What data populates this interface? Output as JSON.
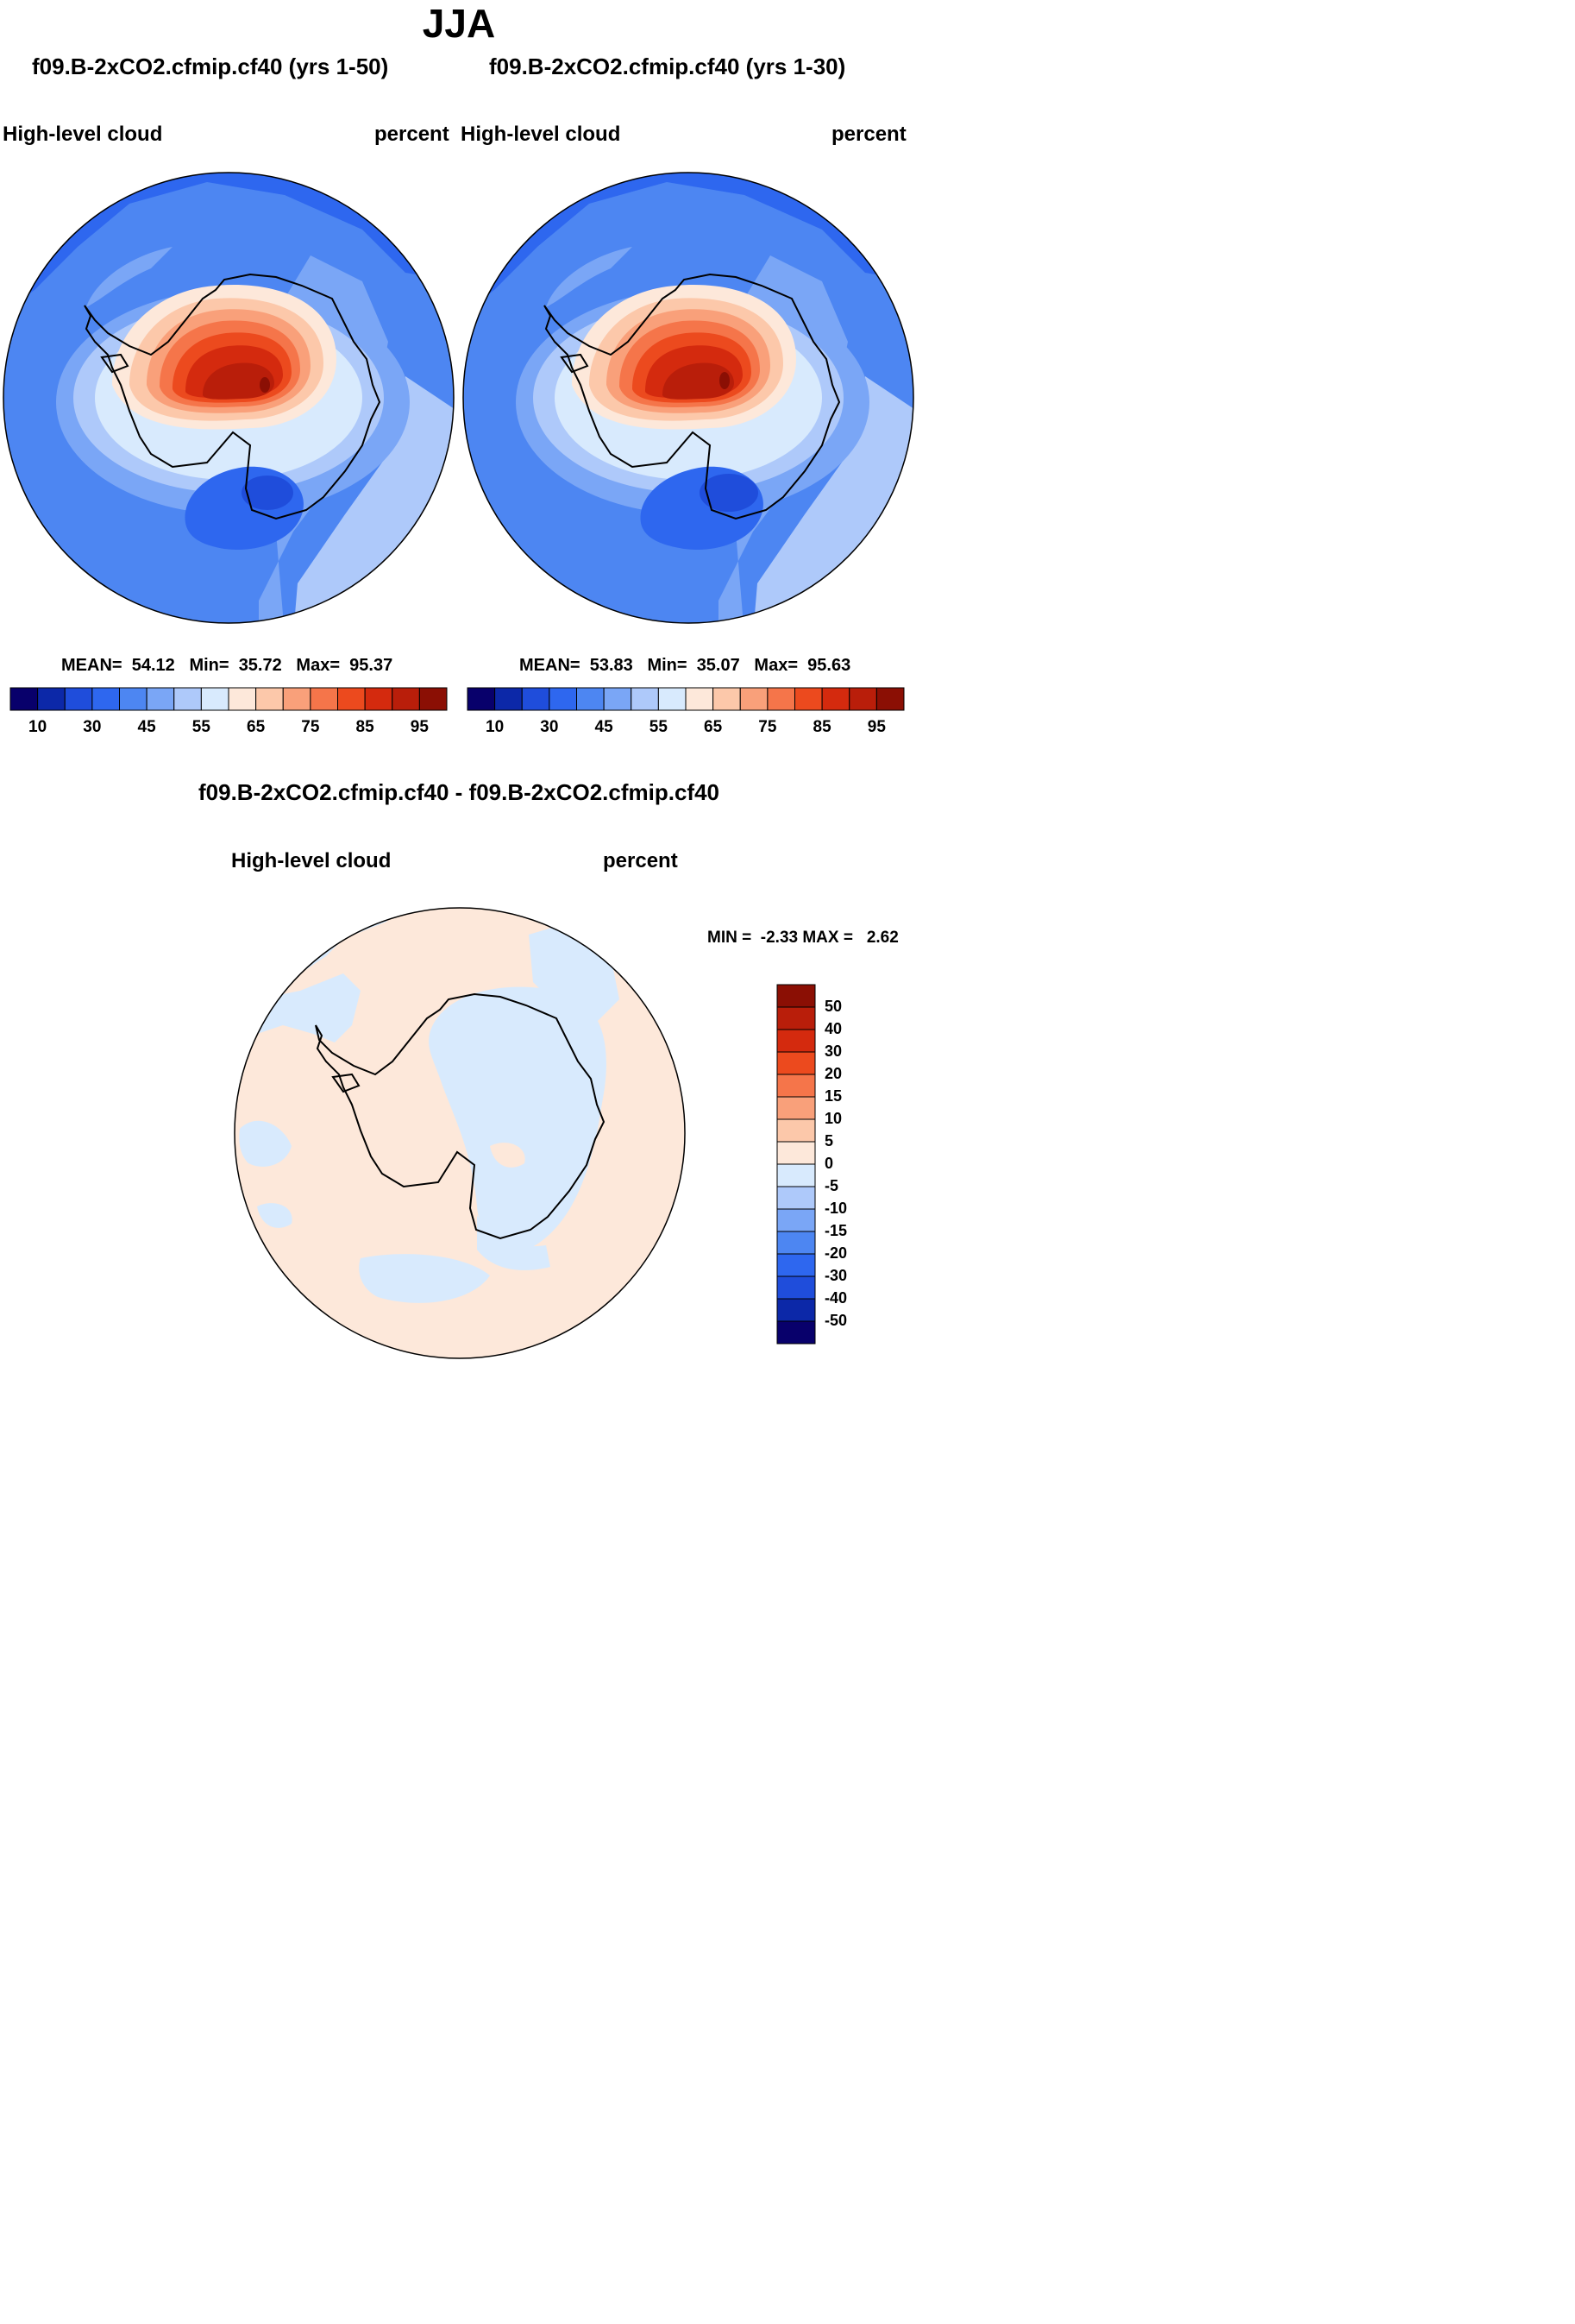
{
  "title": "JJA",
  "panels": [
    {
      "case": "f09.B-2xCO2.cfmip.cf40 (yrs 1-50)",
      "variable": "High-level cloud",
      "units": "percent",
      "mean_label": "MEAN=",
      "mean": "54.12",
      "min_label": "Min=",
      "min": "35.72",
      "max_label": "Max=",
      "max": "95.37"
    },
    {
      "case": "f09.B-2xCO2.cfmip.cf40 (yrs 1-30)",
      "variable": "High-level cloud",
      "units": "percent",
      "mean_label": "MEAN=",
      "mean": "53.83",
      "min_label": "Min=",
      "min": "35.07",
      "max_label": "Max=",
      "max": "95.63"
    }
  ],
  "colorbar": {
    "colors": [
      "#08006b",
      "#0c28a8",
      "#1f4ddb",
      "#2e67ef",
      "#4d86f2",
      "#7aa6f6",
      "#aec9fa",
      "#d8eafd",
      "#fde8da",
      "#fcc8aa",
      "#f9a07a",
      "#f5754a",
      "#ec4a1e",
      "#d42a0e",
      "#b91e0a",
      "#8b0f04"
    ],
    "tick_labels": [
      "10",
      "30",
      "45",
      "55",
      "65",
      "75",
      "85",
      "95"
    ]
  },
  "diff": {
    "title": "f09.B-2xCO2.cfmip.cf40 - f09.B-2xCO2.cfmip.cf40",
    "variable": "High-level cloud",
    "units": "percent",
    "min_label": "MIN =",
    "min": "-2.33",
    "max_label": "MAX =",
    "max": "2.62",
    "colorbar_colors": [
      "#8b0f04",
      "#b91e0a",
      "#d42a0e",
      "#ec4a1e",
      "#f5754a",
      "#f9a07a",
      "#fcc8aa",
      "#fde8da",
      "#d8eafd",
      "#aec9fa",
      "#7aa6f6",
      "#4d86f2",
      "#2e67ef",
      "#1f4ddb",
      "#0c28a8",
      "#08006b"
    ],
    "colorbar_labels": [
      "50",
      "40",
      "30",
      "20",
      "15",
      "10",
      "5",
      "0",
      "-5",
      "-10",
      "-15",
      "-20",
      "-30",
      "-40",
      "-50"
    ]
  }
}
